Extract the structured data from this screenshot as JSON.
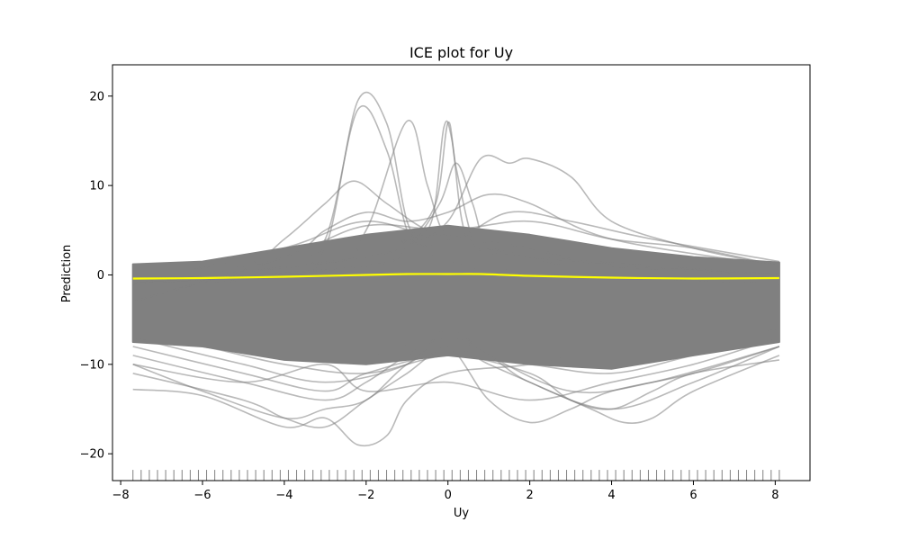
{
  "chart_data": {
    "type": "line",
    "title": "ICE plot for Uy",
    "xlabel": "Uy",
    "ylabel": "Prediction",
    "xlim": [
      -8.2,
      8.85
    ],
    "ylim": [
      -23.0,
      23.5
    ],
    "x_ticks": [
      -8,
      -6,
      -4,
      -2,
      0,
      2,
      4,
      6,
      8
    ],
    "y_ticks": [
      -20,
      -10,
      0,
      10,
      20
    ],
    "grid": false,
    "legend": "none",
    "colors": {
      "ice_lines": "#808080",
      "average_line": "#ffff00",
      "rug": "#808080"
    },
    "average_series": {
      "x": [
        -7.7,
        -6,
        -4,
        -2,
        -1,
        0,
        0.8,
        2,
        4,
        6,
        8.1
      ],
      "y": [
        -0.4,
        -0.35,
        -0.2,
        0.0,
        0.1,
        0.1,
        0.1,
        -0.1,
        -0.3,
        -0.4,
        -0.35
      ]
    },
    "ice_band": {
      "x": [
        -7.7,
        -6,
        -4,
        -2,
        0,
        2,
        4,
        6,
        8.1
      ],
      "upper": [
        1.2,
        1.5,
        3.0,
        4.5,
        5.5,
        4.5,
        3.0,
        2.0,
        1.4
      ],
      "lower": [
        -7.5,
        -8.0,
        -9.5,
        -10.0,
        -9.0,
        -10.0,
        -10.5,
        -9.0,
        -7.5
      ]
    },
    "highlighted_ice_curves": [
      {
        "x": [
          -7.7,
          -4,
          -3,
          -2.2,
          -1.5,
          -1,
          -0.5,
          0,
          1,
          2,
          4,
          8.1
        ],
        "y": [
          -1.5,
          0,
          3,
          19.5,
          17,
          6,
          3,
          2,
          1,
          0,
          -1,
          -1
        ]
      },
      {
        "x": [
          -7.7,
          -4,
          -3,
          -2.2,
          -1.5,
          -1,
          -0.5,
          0,
          1,
          2,
          4,
          8.1
        ],
        "y": [
          -1,
          0.5,
          4,
          18.5,
          14,
          5,
          2.5,
          1.5,
          0.5,
          0,
          -0.5,
          -1
        ]
      },
      {
        "x": [
          -7.7,
          -3,
          -2,
          -1,
          -0.5,
          0,
          1,
          2,
          4,
          8.1
        ],
        "y": [
          -2,
          1,
          5,
          17.2,
          10,
          4,
          3,
          2,
          0,
          -1
        ]
      },
      {
        "x": [
          -7.7,
          -2,
          -1,
          -0.4,
          -0.1,
          0.1,
          0.4,
          1,
          2,
          8.1
        ],
        "y": [
          -1,
          2,
          4,
          6,
          16.5,
          15,
          5,
          3,
          2,
          0
        ]
      },
      {
        "x": [
          -7.7,
          -2,
          -1,
          -0.3,
          0,
          0.2,
          0.6,
          1,
          2,
          8.1
        ],
        "y": [
          -1,
          2,
          4,
          8,
          17,
          12,
          4,
          2.5,
          1.5,
          0
        ]
      },
      {
        "x": [
          -7.7,
          -2,
          -1,
          -0.2,
          0.2,
          0.6,
          1,
          2,
          8.1
        ],
        "y": [
          -1,
          1,
          3,
          8,
          12.5,
          8,
          3,
          2,
          0
        ]
      },
      {
        "x": [
          -7.7,
          -2,
          -1,
          0,
          0.8,
          1.5,
          2,
          3,
          4,
          6,
          8.1
        ],
        "y": [
          -1,
          1,
          3,
          6,
          13,
          12.5,
          13,
          11,
          6,
          3,
          1
        ]
      },
      {
        "x": [
          -7.7,
          -5,
          -4,
          -3,
          -2.3,
          -1.5,
          -0.5,
          0.5,
          2,
          4,
          8.1
        ],
        "y": [
          -1,
          1,
          4,
          8,
          10.5,
          8,
          5,
          4,
          3,
          1,
          0
        ]
      },
      {
        "x": [
          -7.7,
          -4,
          -3,
          -2,
          -1,
          0,
          1,
          2,
          4,
          8.1
        ],
        "y": [
          -3,
          2,
          5,
          7,
          6,
          7,
          9,
          8,
          4,
          1
        ]
      },
      {
        "x": [
          -7.7,
          -4,
          -2,
          0,
          1.5,
          3,
          5,
          8.1
        ],
        "y": [
          -1,
          3,
          6,
          4,
          7,
          6,
          4,
          1.5
        ]
      },
      {
        "x": [
          -7.7,
          -4,
          -2,
          0,
          2,
          4,
          6,
          8.1
        ],
        "y": [
          -3,
          2,
          5.5,
          5,
          6,
          4,
          3,
          1
        ]
      },
      {
        "x": [
          -7.7,
          -6,
          -4,
          -3,
          -2.2,
          -1.5,
          -1,
          0,
          2,
          4,
          8.1
        ],
        "y": [
          -12.8,
          -13.5,
          -17,
          -16,
          -19,
          -18,
          -14,
          -11,
          -10,
          -8,
          -6
        ]
      },
      {
        "x": [
          -7.7,
          -6,
          -4,
          -3,
          -2,
          -1,
          0,
          1,
          2,
          3,
          4,
          6,
          8.1
        ],
        "y": [
          -10,
          -13,
          -16,
          -15,
          -14,
          -10,
          -8,
          -14,
          -16.5,
          -15,
          -13,
          -11,
          -8
        ]
      },
      {
        "x": [
          -7.7,
          -5,
          -4,
          -3,
          -2,
          -1,
          0,
          1,
          2,
          3.5,
          4.3,
          5,
          6,
          8.1
        ],
        "y": [
          -11,
          -14,
          -16,
          -17,
          -14,
          -11,
          -8,
          -10,
          -12,
          -15,
          -16.5,
          -16,
          -13,
          -9
        ]
      },
      {
        "x": [
          -7.7,
          -5,
          -3,
          -2,
          -1,
          0,
          1,
          2,
          4,
          6,
          8.1
        ],
        "y": [
          -9,
          -12,
          -14,
          -12,
          -9,
          -7,
          -9,
          -12,
          -15,
          -12,
          -8
        ]
      },
      {
        "x": [
          -7.7,
          -5,
          -3,
          -2,
          0,
          2,
          3,
          4,
          5,
          6,
          8.1
        ],
        "y": [
          -8,
          -11,
          -13,
          -11,
          -9,
          -11,
          -14,
          -15,
          -13,
          -11,
          -9.5
        ]
      },
      {
        "x": [
          -7.7,
          -5,
          -3,
          -1,
          0,
          1,
          3,
          5,
          8.1
        ],
        "y": [
          -7,
          -10,
          -12,
          -10,
          -6,
          -9,
          -13,
          -12,
          -8
        ]
      },
      {
        "x": [
          -7.7,
          -5,
          -3,
          -2,
          0,
          2,
          4,
          6,
          8.1
        ],
        "y": [
          -10,
          -12,
          -10,
          -13,
          -12,
          -14,
          -12,
          -10,
          -7
        ]
      },
      {
        "x": [
          -7.7,
          -6,
          -4,
          -2,
          0,
          2,
          4,
          6,
          8.1
        ],
        "y": [
          1.2,
          1.0,
          2.0,
          3.0,
          4.5,
          3.0,
          2.0,
          1.5,
          1.4
        ]
      },
      {
        "x": [
          -7.7,
          -6,
          -4,
          -2,
          0,
          2,
          4,
          6,
          8.1
        ],
        "y": [
          0.5,
          0.8,
          1.5,
          4.0,
          3.0,
          2.5,
          1.5,
          1.0,
          0.8
        ]
      },
      {
        "x": [
          -7.7,
          -6,
          -4,
          -2,
          0,
          2,
          4,
          6,
          8.1
        ],
        "y": [
          -6,
          -7,
          -9,
          -9,
          -7,
          -9,
          -9,
          -8,
          -6
        ]
      },
      {
        "x": [
          -7.7,
          -6,
          -4,
          -2,
          0,
          2,
          4,
          6,
          8.1
        ],
        "y": [
          -7,
          -8,
          -10,
          -11,
          -9,
          -10,
          -11,
          -9,
          -7
        ]
      }
    ],
    "rug_x": [
      -7.7,
      -7.5,
      -7.3,
      -7.1,
      -6.9,
      -6.7,
      -6.5,
      -6.3,
      -6.1,
      -5.9,
      -5.7,
      -5.5,
      -5.3,
      -5.1,
      -4.9,
      -4.7,
      -4.5,
      -4.3,
      -4.1,
      -3.9,
      -3.7,
      -3.5,
      -3.3,
      -3.1,
      -2.9,
      -2.7,
      -2.5,
      -2.3,
      -2.1,
      -1.9,
      -1.7,
      -1.5,
      -1.3,
      -1.1,
      -0.9,
      -0.7,
      -0.5,
      -0.3,
      -0.1,
      0.1,
      0.3,
      0.5,
      0.7,
      0.9,
      1.1,
      1.3,
      1.5,
      1.7,
      1.9,
      2.1,
      2.3,
      2.5,
      2.7,
      2.9,
      3.1,
      3.3,
      3.5,
      3.7,
      3.9,
      4.1,
      4.3,
      4.5,
      4.7,
      4.9,
      5.1,
      5.3,
      5.5,
      5.7,
      5.9,
      6.1,
      6.3,
      6.5,
      6.7,
      6.9,
      7.1,
      7.3,
      7.5,
      7.7,
      7.9,
      8.1
    ]
  }
}
